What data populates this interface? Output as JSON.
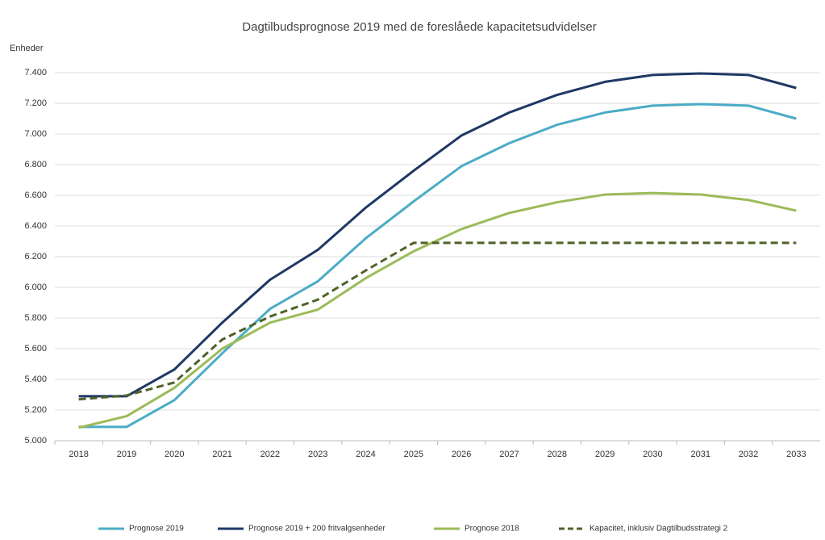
{
  "chart_data": {
    "type": "line",
    "title": "Dagtilbudsprognose 2019 med de foreslåede kapacitetsudvidelser",
    "y_label": "Enheder",
    "categories": [
      "2018",
      "2019",
      "2020",
      "2021",
      "2022",
      "2023",
      "2024",
      "2025",
      "2026",
      "2027",
      "2028",
      "2029",
      "2030",
      "2031",
      "2032",
      "2033"
    ],
    "ylim": [
      5000,
      7600
    ],
    "yticks": [
      {
        "value": 5000,
        "label": "5.000"
      },
      {
        "value": 5200,
        "label": "5.200"
      },
      {
        "value": 5400,
        "label": "5.400"
      },
      {
        "value": 5600,
        "label": "5.600"
      },
      {
        "value": 5800,
        "label": "5.800"
      },
      {
        "value": 6000,
        "label": "6.000"
      },
      {
        "value": 6200,
        "label": "6.200"
      },
      {
        "value": 6400,
        "label": "6.400"
      },
      {
        "value": 6600,
        "label": "6.600"
      },
      {
        "value": 6800,
        "label": "6.800"
      },
      {
        "value": 7000,
        "label": "7.000"
      },
      {
        "value": 7200,
        "label": "7.200"
      },
      {
        "value": 7400,
        "label": "7.400"
      }
    ],
    "grid": true,
    "legend": "bottom",
    "series": [
      {
        "name": "Prognose 2019",
        "color": "#4bacc6",
        "values": [
          5090,
          5090,
          5265,
          5570,
          5860,
          6040,
          6320,
          6560,
          6790,
          6940,
          7060,
          7140,
          7185,
          7195,
          7185,
          7100
        ]
      },
      {
        "name": "Prognose 2019 + 200 fritvalgsenheder",
        "color": "#1f3864",
        "values": [
          5290,
          5290,
          5465,
          5770,
          6050,
          6245,
          6520,
          6760,
          6990,
          7140,
          7255,
          7340,
          7385,
          7395,
          7385,
          7300
        ]
      },
      {
        "name": "Prognose 2018",
        "color": "#9bbb59",
        "values": [
          5085,
          5160,
          5345,
          5600,
          5770,
          5855,
          6060,
          6235,
          6380,
          6485,
          6555,
          6605,
          6615,
          6605,
          6570,
          6500
        ]
      },
      {
        "name": "Kapacitet, inklusiv Dagtilbudsstrategi 2",
        "color": "#4f6228",
        "dashed": true,
        "values": [
          5270,
          5295,
          5380,
          5660,
          5810,
          5920,
          6110,
          6290,
          6290,
          6290,
          6290,
          6290,
          6290,
          6290,
          6290,
          6290
        ]
      }
    ]
  }
}
